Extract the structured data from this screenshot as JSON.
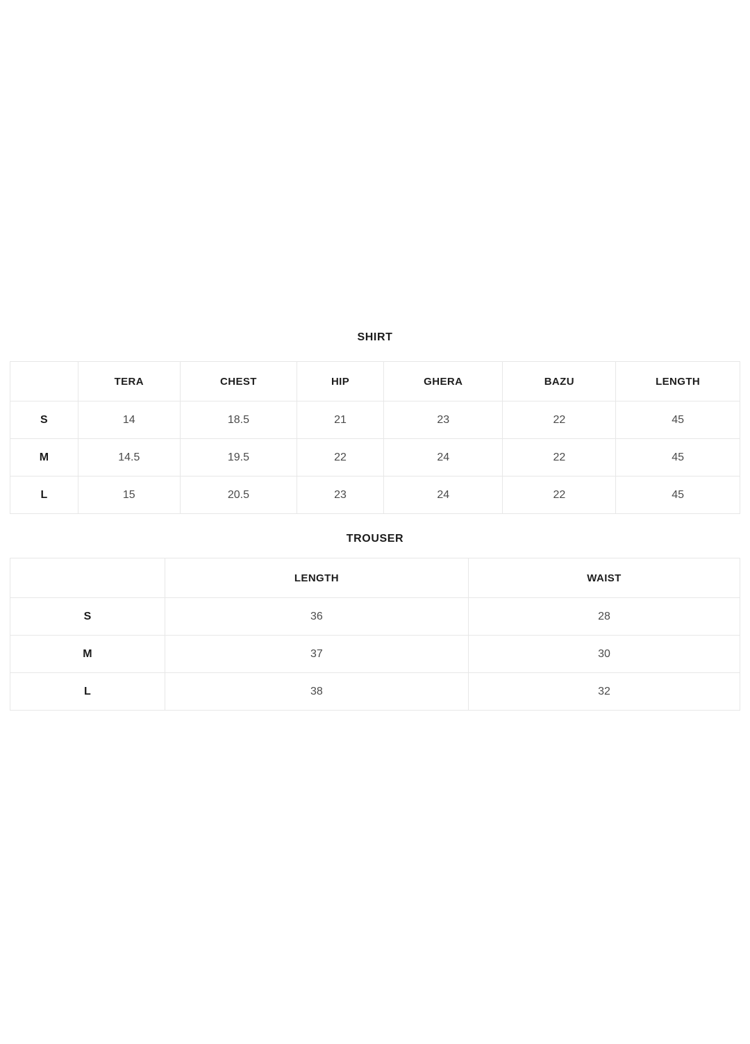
{
  "colors": {
    "background": "#ffffff",
    "border": "#e7e7e7",
    "title_text": "#1a1a1a",
    "header_text": "#1d1d1d",
    "cell_text": "#4a4a4a"
  },
  "chart_data": [
    {
      "type": "table",
      "title": "SHIRT",
      "columns": [
        "",
        "TERA",
        "CHEST",
        "HIP",
        "GHERA",
        "BAZU",
        "LENGTH"
      ],
      "rows": [
        [
          "S",
          "14",
          "18.5",
          "21",
          "23",
          "22",
          "45"
        ],
        [
          "M",
          "14.5",
          "19.5",
          "22",
          "24",
          "22",
          "45"
        ],
        [
          "L",
          "15",
          "20.5",
          "23",
          "24",
          "22",
          "45"
        ]
      ]
    },
    {
      "type": "table",
      "title": "TROUSER",
      "columns": [
        "",
        "LENGTH",
        "WAIST"
      ],
      "rows": [
        [
          "S",
          "36",
          "28"
        ],
        [
          "M",
          "37",
          "30"
        ],
        [
          "L",
          "38",
          "32"
        ]
      ]
    }
  ]
}
